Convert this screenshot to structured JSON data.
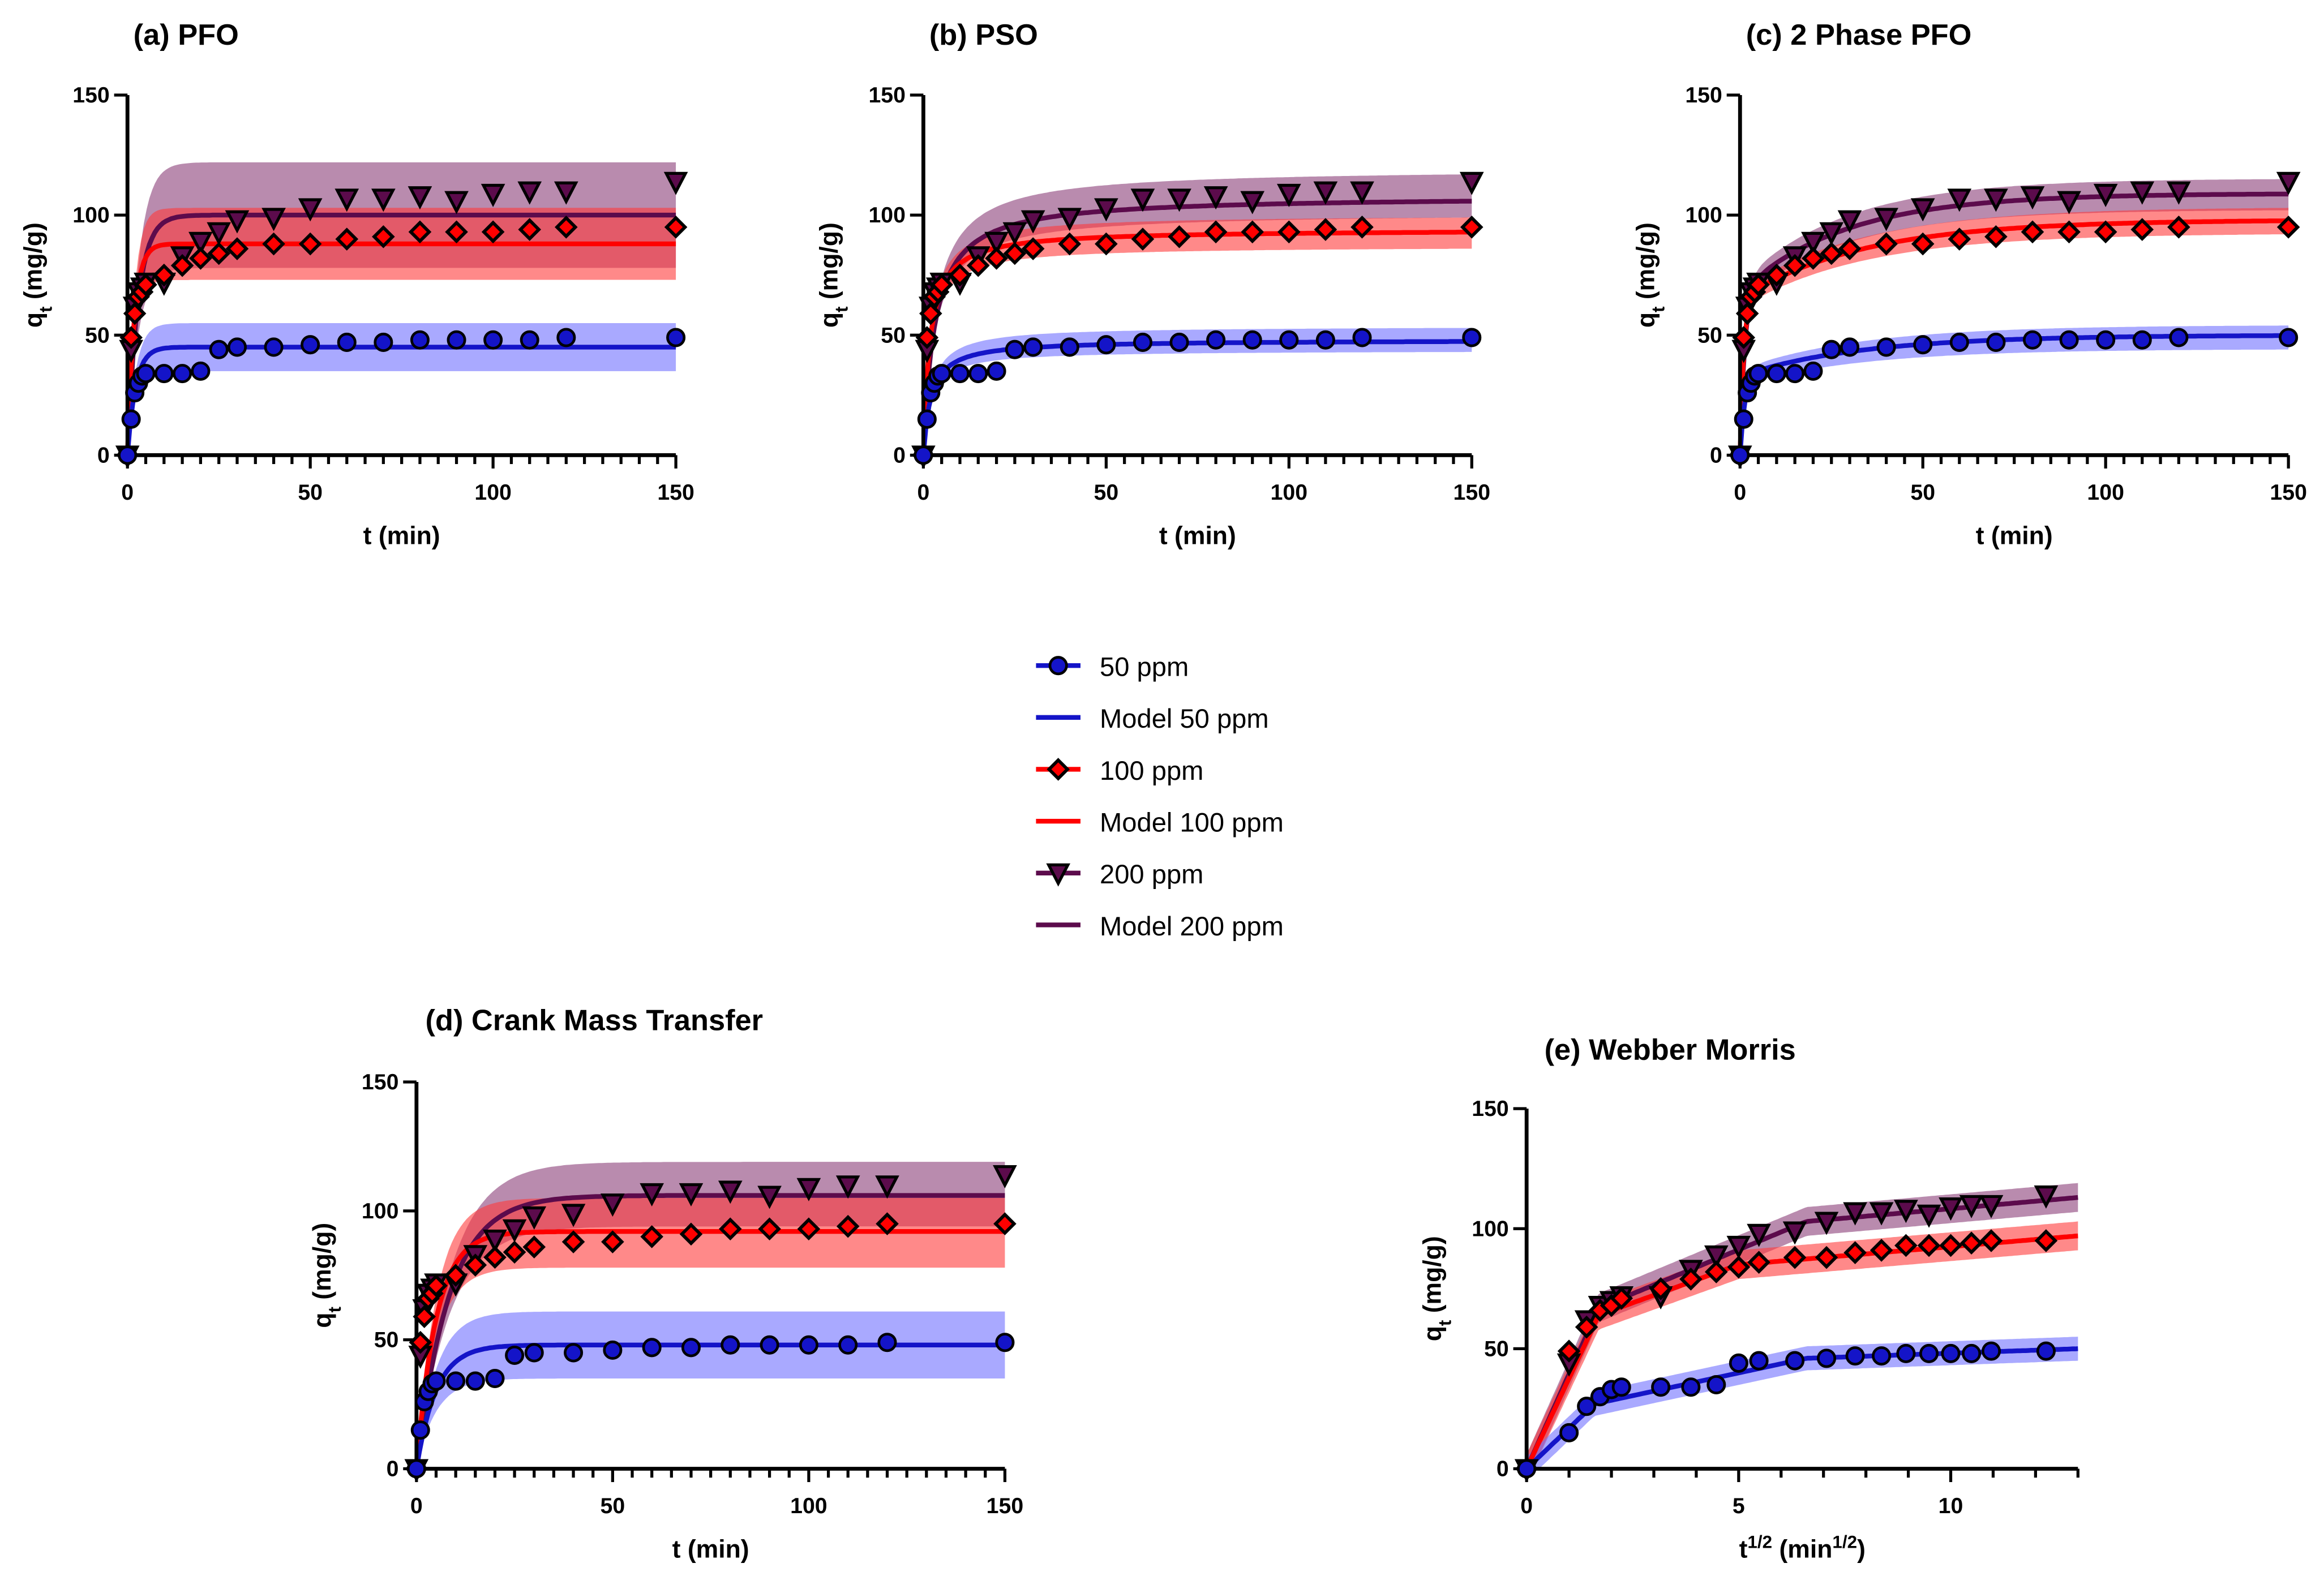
{
  "times": [
    0,
    1,
    2,
    3,
    4,
    5,
    10,
    15,
    20,
    25,
    30,
    40,
    50,
    60,
    70,
    80,
    90,
    100,
    110,
    120,
    150
  ],
  "series": [
    {
      "key": "s50",
      "name": "50 ppm",
      "model_name": "Model 50 ppm",
      "color": "#1414c8",
      "band": "#6f6fff",
      "marker": "circle",
      "q": [
        0,
        15,
        26,
        30,
        33,
        34,
        34,
        34,
        35,
        44,
        45,
        45,
        46,
        47,
        47,
        48,
        48,
        48,
        48,
        49,
        49
      ]
    },
    {
      "key": "s100",
      "name": "100 ppm",
      "model_name": "Model 100 ppm",
      "color": "#ff0000",
      "band": "#ff3b3b",
      "marker": "diamond",
      "q": [
        0,
        49,
        59,
        66,
        68,
        71,
        75,
        79,
        82,
        84,
        86,
        88,
        88,
        90,
        91,
        93,
        93,
        93,
        94,
        95,
        95
      ]
    },
    {
      "key": "s200",
      "name": "200 ppm",
      "model_name": "Model 200 ppm",
      "color": "#5c0b4c",
      "band": "#8a3e78",
      "marker": "triangle-down",
      "q": [
        0,
        44,
        62,
        68,
        70,
        72,
        72,
        83,
        89,
        93,
        98,
        99,
        103,
        107,
        107,
        108,
        106,
        109,
        110,
        110,
        114
      ]
    }
  ],
  "legend": {
    "placement": "center",
    "items": [
      "50 ppm",
      "Model 50 ppm",
      "100 ppm",
      "Model 100 ppm",
      "200 ppm",
      "Model 200 ppm"
    ]
  },
  "chart_data": [
    {
      "id": "a",
      "type": "scatter",
      "title": "(a) PFO",
      "xlabel": "t (min)",
      "ylabel": "qt (mg/g)",
      "x_transform": "none",
      "xlim": [
        0,
        150
      ],
      "ylim": [
        0,
        150
      ],
      "xticks": [
        0,
        50,
        100,
        150
      ],
      "yticks": [
        0,
        50,
        100,
        150
      ],
      "minor_step": 5,
      "models": [
        {
          "form": "pfo",
          "qe": 45,
          "k": 0.45,
          "band": [
            35,
            55
          ]
        },
        {
          "form": "pfo",
          "qe": 88,
          "k": 0.55,
          "band": [
            73,
            103
          ]
        },
        {
          "form": "pfo",
          "qe": 100,
          "k": 0.35,
          "band": [
            78,
            122
          ]
        }
      ]
    },
    {
      "id": "b",
      "type": "scatter",
      "title": "(b) PSO",
      "xlabel": "t (min)",
      "ylabel": "qt (mg/g)",
      "x_transform": "none",
      "xlim": [
        0,
        150
      ],
      "ylim": [
        0,
        150
      ],
      "xticks": [
        0,
        50,
        100,
        150
      ],
      "yticks": [
        0,
        50,
        100,
        150
      ],
      "minor_step": 5,
      "models": [
        {
          "form": "pso",
          "qe": 48,
          "k": 0.01,
          "band": [
            43,
            53
          ]
        },
        {
          "form": "pso",
          "qe": 94,
          "k": 0.006,
          "band": [
            86,
            99
          ]
        },
        {
          "form": "pso",
          "qe": 108,
          "k": 0.003,
          "band": [
            99,
            117
          ]
        }
      ]
    },
    {
      "id": "c",
      "type": "scatter",
      "title": "(c) 2 Phase PFO",
      "xlabel": "t (min)",
      "ylabel": "qt (mg/g)",
      "x_transform": "none",
      "xlim": [
        0,
        150
      ],
      "ylim": [
        0,
        150
      ],
      "xticks": [
        0,
        50,
        100,
        150
      ],
      "yticks": [
        0,
        50,
        100,
        150
      ],
      "minor_step": 5,
      "models": [
        {
          "form": "pfo2",
          "qe1": 33,
          "k1": 0.8,
          "qe2": 17,
          "k2": 0.03,
          "band": [
            44,
            54
          ]
        },
        {
          "form": "pfo2",
          "qe1": 65,
          "k1": 1.0,
          "qe2": 33,
          "k2": 0.03,
          "band": [
            92,
            103
          ]
        },
        {
          "form": "pfo2",
          "qe1": 68,
          "k1": 0.8,
          "qe2": 41,
          "k2": 0.035,
          "band": [
            102,
            115
          ]
        }
      ]
    },
    {
      "id": "d",
      "type": "scatter",
      "title": "(d) Crank Mass Transfer",
      "xlabel": "t (min)",
      "ylabel": "qt (mg/g)",
      "x_transform": "none",
      "xlim": [
        0,
        150
      ],
      "ylim": [
        0,
        150
      ],
      "xticks": [
        0,
        50,
        100,
        150
      ],
      "yticks": [
        0,
        50,
        100,
        150
      ],
      "minor_step": 5,
      "models": [
        {
          "form": "pfo",
          "qe": 48,
          "k": 0.2,
          "band": [
            35,
            61
          ]
        },
        {
          "form": "pfo",
          "qe": 92,
          "k": 0.2,
          "band": [
            78,
            105
          ]
        },
        {
          "form": "pfo",
          "qe": 106,
          "k": 0.12,
          "band": [
            94,
            119
          ]
        }
      ]
    },
    {
      "id": "e",
      "type": "scatter",
      "title": "(e) Webber Morris",
      "xlabel": "t1/2 (min1/2)",
      "ylabel": "qt (mg/g)",
      "x_transform": "sqrt",
      "xlim": [
        0,
        13
      ],
      "ylim": [
        0,
        150
      ],
      "xticks": [
        0,
        5,
        10
      ],
      "yticks": [
        0,
        50,
        100,
        150
      ],
      "minor_step": 1,
      "models": [
        {
          "form": "piecewise",
          "points": [
            [
              0,
              0
            ],
            [
              1.6,
              27
            ],
            [
              6.6,
              46
            ],
            [
              13,
              50
            ]
          ],
          "halfwidth": 5
        },
        {
          "form": "piecewise",
          "points": [
            [
              0,
              0
            ],
            [
              1.7,
              64
            ],
            [
              5,
              85
            ],
            [
              13,
              97
            ]
          ],
          "halfwidth": 6
        },
        {
          "form": "piecewise",
          "points": [
            [
              0,
              0
            ],
            [
              1.7,
              67
            ],
            [
              6.6,
              103
            ],
            [
              13,
              113
            ]
          ],
          "halfwidth": 6
        }
      ]
    }
  ]
}
